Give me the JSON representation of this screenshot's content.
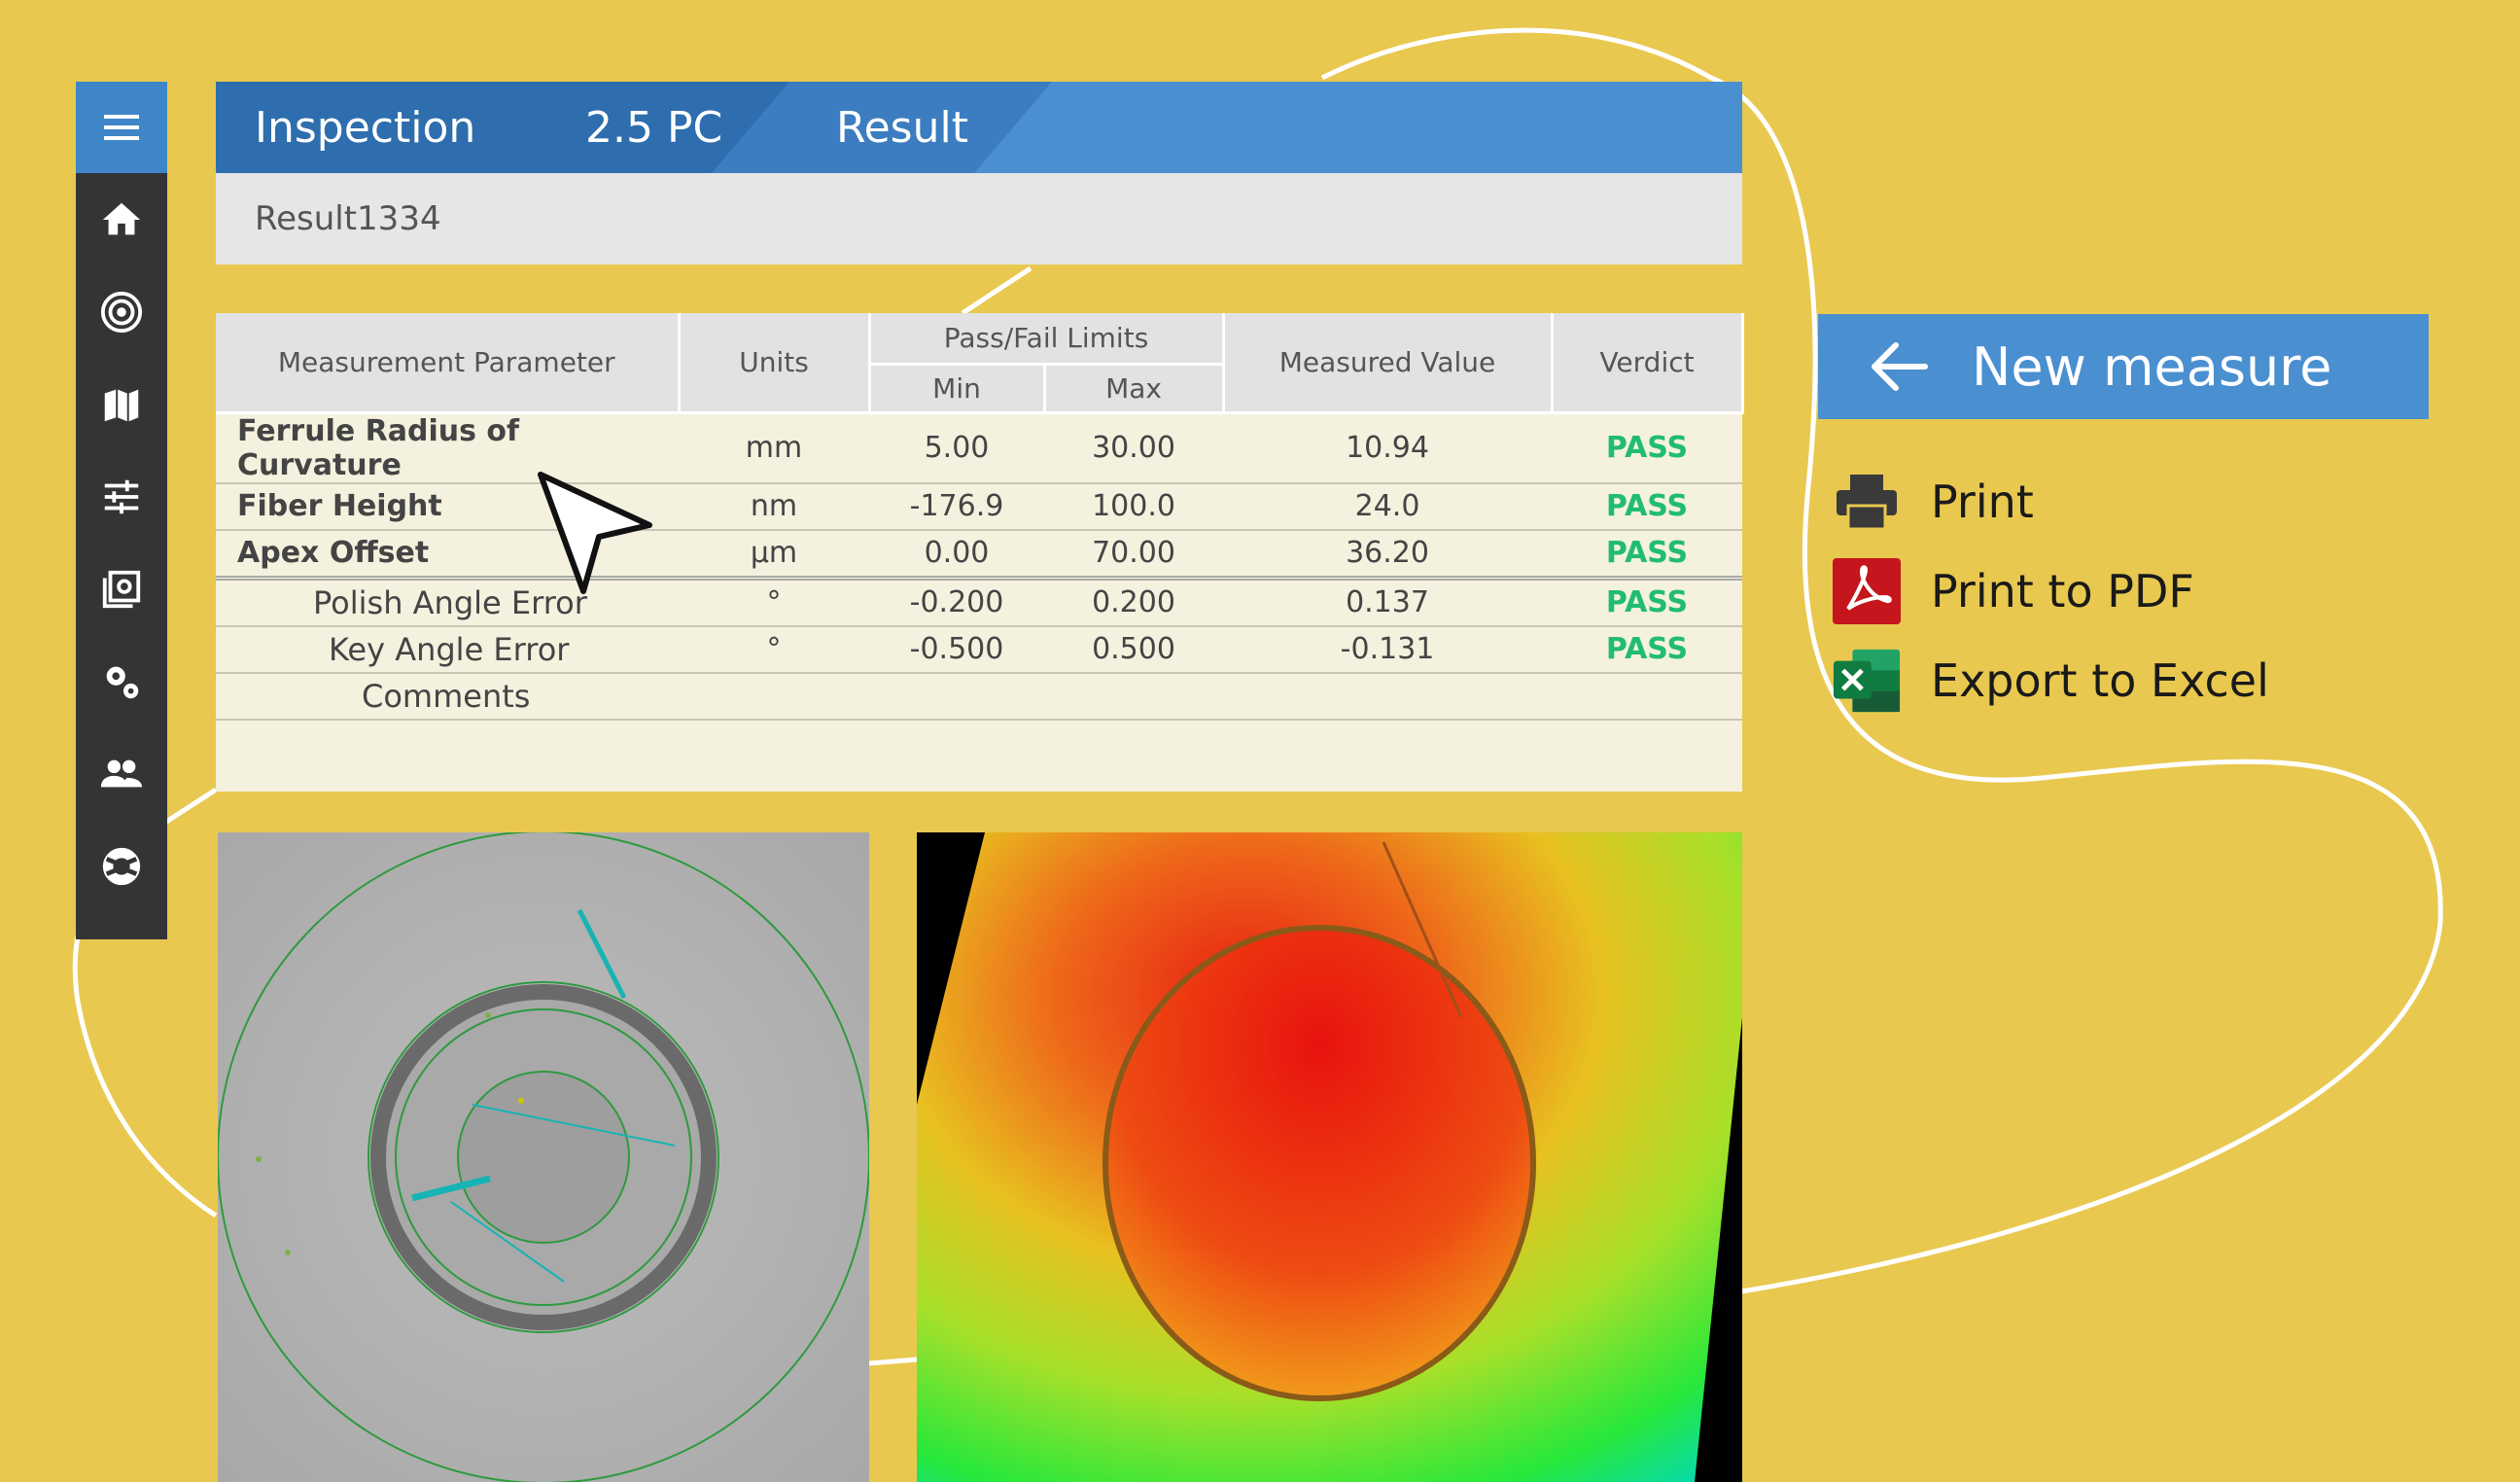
{
  "breadcrumbs": [
    "Inspection",
    "2.5 PC",
    "Result"
  ],
  "result_name": "Result1334",
  "table": {
    "headers": {
      "parameter": "Measurement Parameter",
      "units": "Units",
      "limits": "Pass/Fail Limits",
      "min": "Min",
      "max": "Max",
      "measured": "Measured Value",
      "verdict": "Verdict"
    },
    "rows": [
      {
        "parameter": "Ferrule Radius of Curvature",
        "units": "mm",
        "min": "5.00",
        "max": "30.00",
        "measured": "10.94",
        "verdict": "PASS"
      },
      {
        "parameter": "Fiber Height",
        "units": "nm",
        "min": "-176.9",
        "max": "100.0",
        "measured": "24.0",
        "verdict": "PASS"
      },
      {
        "parameter": "Apex Offset",
        "units": "µm",
        "min": "0.00",
        "max": "70.00",
        "measured": "36.20",
        "verdict": "PASS"
      },
      {
        "parameter": "Polish Angle Error",
        "units": "°",
        "min": "-0.200",
        "max": "0.200",
        "measured": "0.137",
        "verdict": "PASS"
      },
      {
        "parameter": "Key Angle Error",
        "units": "°",
        "min": "-0.500",
        "max": "0.500",
        "measured": "-0.131",
        "verdict": "PASS"
      }
    ],
    "comments_label": "Comments"
  },
  "actions": {
    "new_measure": "New measure",
    "print": "Print",
    "print_pdf": "Print to PDF",
    "export_excel": "Export to Excel"
  },
  "sidebar_icons": [
    "menu-icon",
    "home-icon",
    "target-icon",
    "map-icon",
    "sliders-icon",
    "gallery-icon",
    "gears-icon",
    "users-icon",
    "lifebuoy-icon"
  ],
  "colors": {
    "background": "#e9c84f",
    "accent": "#4a8fd0",
    "pass": "#21bc72",
    "sidebar": "#333436"
  }
}
